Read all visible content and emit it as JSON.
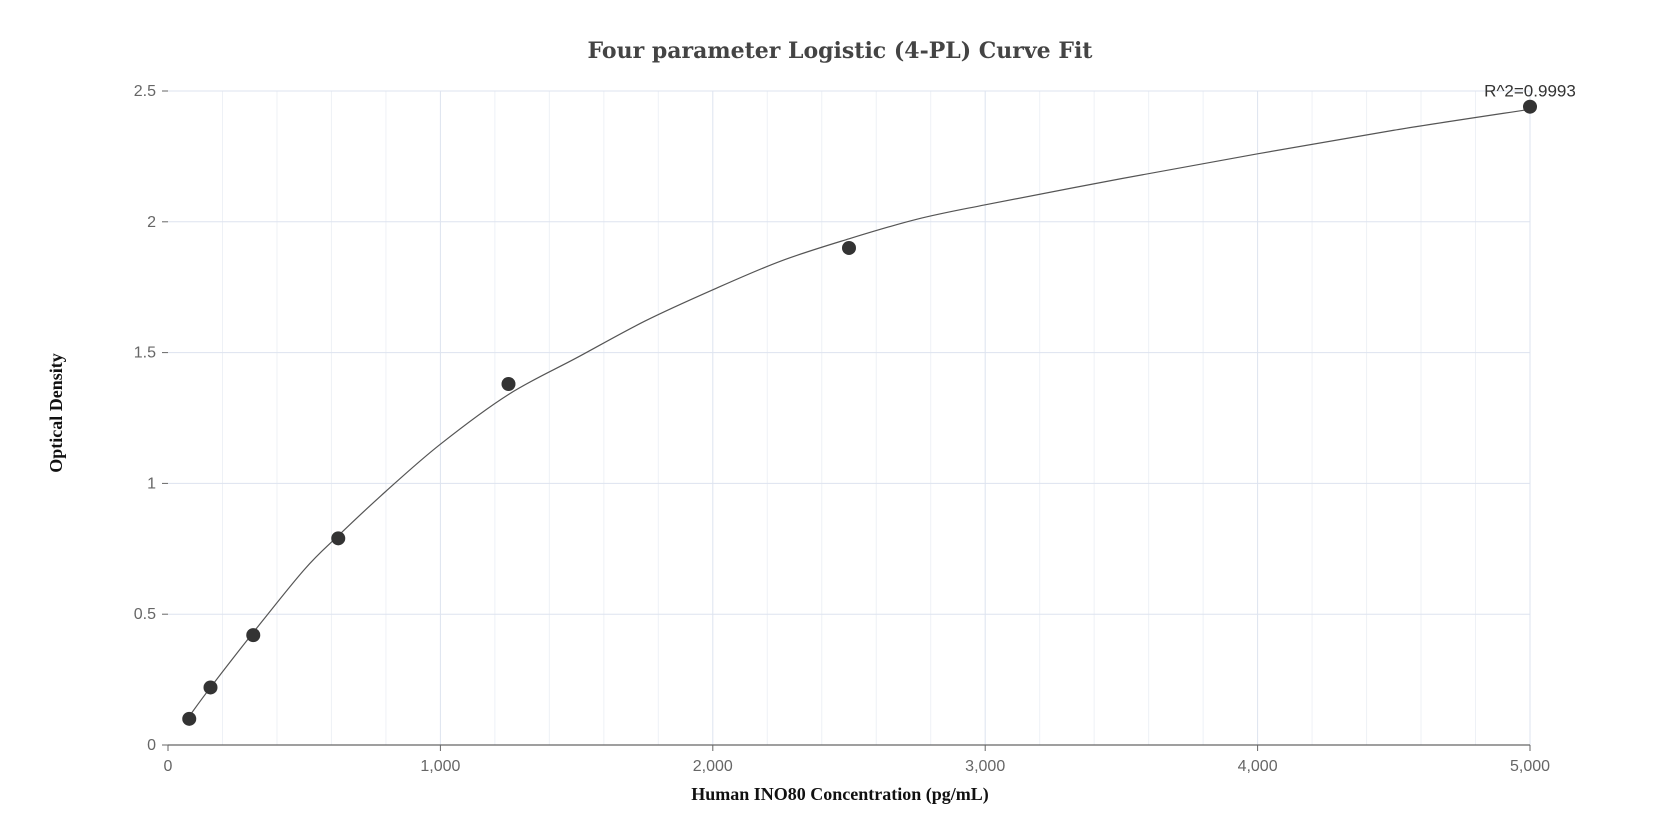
{
  "chart_data": {
    "type": "scatter",
    "title": "Four parameter Logistic (4-PL) Curve Fit",
    "xlabel": "Human INO80 Concentration (pg/mL)",
    "ylabel": "Optical Density",
    "xlim": [
      0,
      5000
    ],
    "ylim": [
      0,
      2.5
    ],
    "x_ticks": [
      0,
      1000,
      2000,
      3000,
      4000,
      5000
    ],
    "x_tick_labels": [
      "0",
      "1,000",
      "2,000",
      "3,000",
      "4,000",
      "5,000"
    ],
    "y_ticks": [
      0,
      0.5,
      1,
      1.5,
      2,
      2.5
    ],
    "y_tick_labels": [
      "0",
      "0.5",
      "1",
      "1.5",
      "2",
      "2.5"
    ],
    "grid": true,
    "series": [
      {
        "type": "scatter",
        "x": [
          78,
          156,
          313,
          625,
          1250,
          2500,
          5000
        ],
        "y": [
          0.1,
          0.22,
          0.42,
          0.79,
          1.38,
          1.9,
          2.44
        ]
      },
      {
        "type": "line",
        "x": [
          78,
          156,
          313,
          500,
          625,
          800,
          1000,
          1250,
          1500,
          1750,
          2000,
          2250,
          2500,
          2750,
          3000,
          3500,
          4000,
          4500,
          5000
        ],
        "y": [
          0.11,
          0.22,
          0.43,
          0.67,
          0.8,
          0.97,
          1.15,
          1.34,
          1.48,
          1.62,
          1.74,
          1.85,
          1.935,
          2.01,
          2.065,
          2.165,
          2.26,
          2.35,
          2.43
        ]
      }
    ],
    "annotations": [
      {
        "text": "R^2=0.9993",
        "x": 5000,
        "y": 2.44
      }
    ],
    "colors": {
      "marker": "#333333",
      "curve": "#555555",
      "grid_major": "#dde3ef",
      "grid_minor": "#eef1f6",
      "axis": "#666666"
    }
  }
}
